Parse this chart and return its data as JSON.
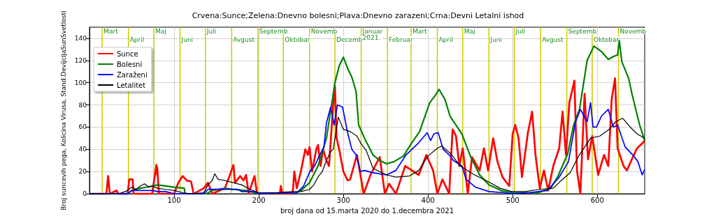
{
  "chart_data": {
    "type": "line",
    "title": "Crvena:Sunce;Zelena:Dnevno bolesni;Plava:Dnevno zarazeni;Crna:Devni Letalni ishod",
    "xlabel": "broj dana od 15.marta 2020 do 1.decembra 2021",
    "ylabel": "Broj suncevih pega, Kolicina Virusa, Stand.DevijcijaSunSvetlosti",
    "xlim": [
      0,
      656
    ],
    "xticks": [
      100,
      200,
      300,
      400,
      500,
      600
    ],
    "ylim": [
      0,
      150
    ],
    "yticks": [
      0,
      20,
      40,
      60,
      80,
      100,
      120,
      140
    ],
    "grid": true,
    "legend": "top left",
    "marker": "none",
    "series": [
      {
        "name": "Sunce",
        "color": "#ff0000",
        "x": [
          0,
          20,
          22,
          24,
          32,
          34,
          45,
          47,
          51,
          52,
          74,
          79,
          77,
          80,
          82,
          100,
          105,
          110,
          115,
          120,
          123,
          135,
          140,
          145,
          160,
          165,
          170,
          172,
          178,
          182,
          185,
          188,
          195,
          198,
          225,
          226,
          228,
          240,
          242,
          245,
          250,
          255,
          258,
          260,
          263,
          268,
          270,
          273,
          276,
          280,
          283,
          288,
          290,
          292,
          295,
          300,
          305,
          308,
          316,
          324,
          332,
          343,
          349,
          354,
          362,
          373,
          381,
          389,
          398,
          406,
          411,
          417,
          425,
          429,
          433,
          437,
          441,
          447,
          452,
          461,
          466,
          471,
          477,
          482,
          488,
          496,
          500,
          503,
          507,
          511,
          518,
          523,
          527,
          532,
          537,
          542,
          548,
          555,
          559,
          563,
          567,
          573,
          576,
          580,
          585,
          589,
          594,
          601,
          608,
          613,
          617,
          621,
          624,
          631,
          635,
          642,
          647,
          654,
          656
        ],
        "values": [
          0,
          0,
          16,
          0,
          3,
          0,
          0,
          13,
          13,
          0,
          0,
          26,
          15,
          24,
          0,
          0,
          10,
          16,
          12,
          11,
          0,
          5,
          10,
          0,
          5,
          15,
          26,
          10,
          16,
          12,
          17,
          0,
          16,
          0,
          0,
          7,
          0,
          0,
          20,
          5,
          21,
          40,
          35,
          42,
          20,
          40,
          44,
          25,
          40,
          30,
          25,
          80,
          97,
          50,
          40,
          20,
          12,
          13,
          35,
          0,
          17,
          33,
          0,
          9,
          0,
          25,
          21,
          17,
          35,
          21,
          0,
          13,
          0,
          58,
          52,
          25,
          41,
          0,
          33,
          21,
          41,
          21,
          50,
          29,
          15,
          7,
          54,
          62,
          50,
          15,
          55,
          74,
          35,
          5,
          21,
          3,
          25,
          41,
          74,
          35,
          82,
          102,
          21,
          0,
          90,
          31,
          52,
          17,
          35,
          25,
          85,
          104,
          41,
          25,
          21,
          33,
          41,
          46,
          48
        ]
      },
      {
        "name": "Bolesni",
        "color": "#008000",
        "x": [
          0,
          45,
          50,
          60,
          68,
          80,
          90,
          100,
          112,
          113,
          138,
          145,
          160,
          170,
          185,
          195,
          200,
          245,
          250,
          260,
          270,
          280,
          285,
          290,
          295,
          300,
          305,
          310,
          315,
          318,
          325,
          335,
          343,
          351,
          360,
          371,
          380,
          390,
          402,
          408,
          413,
          420,
          426,
          440,
          450,
          461,
          472,
          486,
          500,
          510,
          530,
          545,
          553,
          565,
          572,
          579,
          588,
          596,
          605,
          613,
          620,
          624,
          626,
          629,
          637,
          641,
          650,
          656
        ],
        "values": [
          0,
          0,
          3,
          5,
          6,
          8,
          7,
          6,
          5,
          0,
          0,
          3,
          5,
          4,
          3,
          1,
          0,
          1,
          3,
          10,
          25,
          50,
          75,
          100,
          115,
          123,
          113,
          105,
          92,
          62,
          50,
          35,
          30,
          27,
          29,
          34,
          45,
          56,
          82,
          88,
          94,
          85,
          70,
          54,
          34,
          17,
          8,
          3,
          1,
          1,
          1,
          5,
          15,
          36,
          62,
          76,
          120,
          133,
          128,
          121,
          124,
          125,
          138,
          119,
          104,
          90,
          62,
          48
        ]
      },
      {
        "name": "Zaraženi",
        "color": "#0000ff",
        "x": [
          0,
          45,
          50,
          60,
          75,
          80,
          90,
          100,
          135,
          140,
          160,
          175,
          180,
          195,
          200,
          245,
          253,
          261,
          266,
          272,
          277,
          280,
          285,
          289,
          293,
          299,
          305,
          310,
          315,
          318,
          320,
          325,
          335,
          351,
          362,
          374,
          389,
          399,
          403,
          407,
          412,
          418,
          425,
          430,
          440,
          445,
          456,
          472,
          490,
          500,
          520,
          541,
          555,
          566,
          574,
          580,
          588,
          592,
          595,
          599,
          605,
          613,
          619,
          624,
          633,
          642,
          648,
          653,
          656
        ],
        "values": [
          0,
          0,
          3,
          3,
          3,
          2,
          2,
          0,
          0,
          4,
          4,
          4,
          2,
          2,
          0,
          1,
          7,
          21,
          25,
          35,
          42,
          64,
          78,
          62,
          80,
          78,
          55,
          40,
          35,
          27,
          20,
          21,
          19,
          17,
          21,
          35,
          46,
          55,
          48,
          54,
          55,
          40,
          35,
          30,
          25,
          13,
          6,
          2,
          1,
          0,
          1,
          3,
          15,
          29,
          64,
          76,
          65,
          82,
          60,
          60,
          70,
          76,
          60,
          62,
          42,
          35,
          29,
          17,
          22
        ]
      },
      {
        "name": "Letalitet",
        "color": "#000000",
        "x": [
          0,
          35,
          45,
          50,
          55,
          60,
          65,
          70,
          75,
          80,
          90,
          100,
          110,
          120,
          135,
          140,
          145,
          148,
          152,
          160,
          170,
          180,
          190,
          200,
          220,
          240,
          250,
          260,
          265,
          270,
          275,
          280,
          285,
          288,
          290,
          294,
          300,
          308,
          316,
          321,
          327,
          335,
          343,
          351,
          362,
          378,
          389,
          400,
          411,
          416,
          427,
          438,
          455,
          471,
          485,
          499,
          515,
          532,
          548,
          556,
          568,
          578,
          592,
          603,
          614,
          622,
          630,
          639,
          647,
          656
        ],
        "values": [
          0,
          0,
          3,
          6,
          4,
          7,
          9,
          6,
          7,
          5,
          4,
          3,
          1,
          0,
          1,
          8,
          12,
          18,
          13,
          12,
          10,
          8,
          4,
          1,
          1,
          2,
          2,
          4,
          8,
          15,
          20,
          30,
          38,
          40,
          50,
          69,
          58,
          56,
          52,
          45,
          39,
          23,
          20,
          17,
          15,
          16,
          21,
          34,
          41,
          43,
          36,
          25,
          17,
          11,
          5,
          2,
          2,
          4,
          5,
          11,
          19,
          34,
          50,
          52,
          58,
          65,
          68,
          60,
          54,
          50
        ]
      }
    ],
    "ref_lines": [
      {
        "axis": "x",
        "value": 15,
        "label": "Mart",
        "color": "#cccc00"
      },
      {
        "axis": "x",
        "value": 46,
        "label": "April",
        "color": "#cccc00"
      },
      {
        "axis": "x",
        "value": 76,
        "label": "Maj",
        "color": "#cccc00"
      },
      {
        "axis": "x",
        "value": 107,
        "label": "Juni",
        "color": "#cccc00"
      },
      {
        "axis": "x",
        "value": 137,
        "label": "Juli",
        "color": "#cccc00"
      },
      {
        "axis": "x",
        "value": 168,
        "label": "Avgust",
        "color": "#cccc00"
      },
      {
        "axis": "x",
        "value": 199,
        "label": "Septemb",
        "color": "#cccc00"
      },
      {
        "axis": "x",
        "value": 229,
        "label": "Oktobar",
        "color": "#cccc00"
      },
      {
        "axis": "x",
        "value": 260,
        "label": "Novemb",
        "color": "#cccc00"
      },
      {
        "axis": "x",
        "value": 290,
        "label": "Decemb",
        "color": "#cccc00"
      },
      {
        "axis": "x",
        "value": 321,
        "label": "Januar\n2021.",
        "color": "#cccc00"
      },
      {
        "axis": "x",
        "value": 352,
        "label": "Februar",
        "color": "#cccc00"
      },
      {
        "axis": "x",
        "value": 380,
        "label": "Mart",
        "color": "#cccc00"
      },
      {
        "axis": "x",
        "value": 411,
        "label": "April",
        "color": "#cccc00"
      },
      {
        "axis": "x",
        "value": 441,
        "label": "Maj",
        "color": "#cccc00"
      },
      {
        "axis": "x",
        "value": 472,
        "label": "Juni",
        "color": "#cccc00"
      },
      {
        "axis": "x",
        "value": 502,
        "label": "Juli",
        "color": "#cccc00"
      },
      {
        "axis": "x",
        "value": 533,
        "label": "Avgust",
        "color": "#cccc00"
      },
      {
        "axis": "x",
        "value": 564,
        "label": "Septemb",
        "color": "#cccc00"
      },
      {
        "axis": "x",
        "value": 594,
        "label": "Oktobar",
        "color": "#cccc00"
      },
      {
        "axis": "x",
        "value": 625,
        "label": "Novemb",
        "color": "#cccc00"
      }
    ]
  }
}
